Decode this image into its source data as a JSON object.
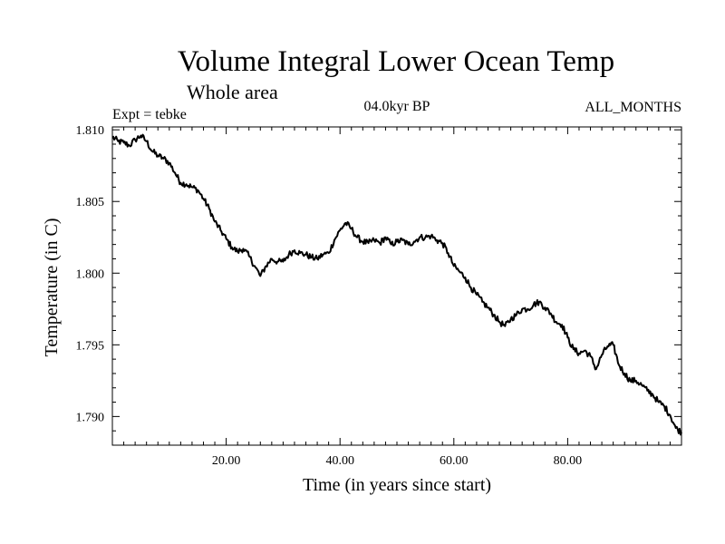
{
  "chart_data": {
    "type": "line",
    "title": "Volume Integral Lower Ocean Temp",
    "subtitle": "Whole area",
    "expt_label": "Expt = tebke",
    "period_label": "04.0kyr BP",
    "months_label": "ALL_MONTHS",
    "xlabel": "Time (in years since start)",
    "ylabel": "Temperature (in C)",
    "xlim": [
      0,
      100
    ],
    "ylim": [
      1.788,
      1.8102
    ],
    "x_ticks": [
      20,
      40,
      60,
      80
    ],
    "x_tick_labels": [
      "20.00",
      "40.00",
      "60.00",
      "80.00"
    ],
    "y_ticks": [
      1.79,
      1.795,
      1.8,
      1.805,
      1.81
    ],
    "y_tick_labels": [
      "1.790",
      "1.795",
      "1.800",
      "1.805",
      "1.810"
    ],
    "series": [
      {
        "name": "Volume integral lower ocean temperature",
        "x": [
          0,
          1,
          2,
          3,
          4,
          5,
          6,
          7,
          8,
          9,
          10,
          11,
          12,
          13,
          14,
          15,
          16,
          17,
          18,
          19,
          20,
          21,
          22,
          23,
          24,
          25,
          26,
          27,
          28,
          29,
          30,
          31,
          32,
          33,
          34,
          35,
          36,
          37,
          38,
          39,
          40,
          41,
          42,
          43,
          44,
          45,
          46,
          47,
          48,
          49,
          50,
          51,
          52,
          53,
          54,
          55,
          56,
          57,
          58,
          59,
          60,
          61,
          62,
          63,
          64,
          65,
          66,
          67,
          68,
          69,
          70,
          71,
          72,
          73,
          74,
          75,
          76,
          77,
          78,
          79,
          80,
          81,
          82,
          83,
          84,
          85,
          86,
          87,
          88,
          89,
          90,
          91,
          92,
          93,
          94,
          95,
          96,
          97,
          98,
          99,
          100
        ],
        "values": [
          1.8095,
          1.8092,
          1.8091,
          1.8089,
          1.8093,
          1.8096,
          1.8092,
          1.8085,
          1.8082,
          1.808,
          1.8077,
          1.807,
          1.8063,
          1.8062,
          1.806,
          1.8058,
          1.8052,
          1.8045,
          1.8036,
          1.803,
          1.8024,
          1.8018,
          1.8015,
          1.8017,
          1.8012,
          1.8005,
          1.7998,
          1.8005,
          1.801,
          1.8008,
          1.8008,
          1.8013,
          1.8016,
          1.8014,
          1.8013,
          1.8011,
          1.801,
          1.8013,
          1.8014,
          1.8023,
          1.803,
          1.8035,
          1.8031,
          1.8025,
          1.8022,
          1.8021,
          1.8023,
          1.8021,
          1.8025,
          1.802,
          1.8022,
          1.8023,
          1.802,
          1.8022,
          1.8025,
          1.8025,
          1.8026,
          1.8023,
          1.8021,
          1.8014,
          1.8005,
          1.8001,
          1.7997,
          1.799,
          1.7985,
          1.798,
          1.7976,
          1.7971,
          1.7966,
          1.7963,
          1.7968,
          1.7971,
          1.7975,
          1.7975,
          1.7978,
          1.798,
          1.7976,
          1.7972,
          1.7966,
          1.7964,
          1.7955,
          1.7947,
          1.7944,
          1.7946,
          1.7942,
          1.7933,
          1.7943,
          1.7949,
          1.795,
          1.7936,
          1.793,
          1.7925,
          1.7925,
          1.7922,
          1.7918,
          1.7915,
          1.791,
          1.7907,
          1.7901,
          1.7892,
          1.7889
        ]
      }
    ]
  }
}
